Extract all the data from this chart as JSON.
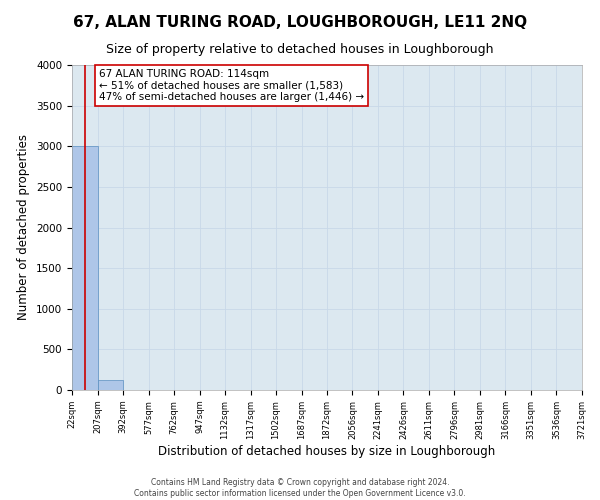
{
  "title": "67, ALAN TURING ROAD, LOUGHBOROUGH, LE11 2NQ",
  "subtitle": "Size of property relative to detached houses in Loughborough",
  "xlabel": "Distribution of detached houses by size in Loughborough",
  "ylabel": "Number of detached properties",
  "footer_line1": "Contains HM Land Registry data © Crown copyright and database right 2024.",
  "footer_line2": "Contains public sector information licensed under the Open Government Licence v3.0.",
  "bin_edges": [
    22,
    207,
    392,
    577,
    762,
    947,
    1132,
    1317,
    1502,
    1687,
    1872,
    2056,
    2241,
    2426,
    2611,
    2796,
    2981,
    3166,
    3351,
    3536,
    3721
  ],
  "bin_heights": [
    3000,
    125,
    0,
    0,
    0,
    0,
    0,
    0,
    0,
    0,
    0,
    0,
    0,
    0,
    0,
    0,
    0,
    0,
    0,
    0
  ],
  "bar_color": "#aec6e8",
  "bar_edge_color": "#5a8fc0",
  "property_size": 114,
  "red_line_color": "#cc0000",
  "annotation_line1": "67 ALAN TURING ROAD: 114sqm",
  "annotation_line2": "← 51% of detached houses are smaller (1,583)",
  "annotation_line3": "47% of semi-detached houses are larger (1,446) →",
  "annotation_box_color": "#ffffff",
  "annotation_box_edge": "#cc0000",
  "ylim": [
    0,
    4000
  ],
  "yticks": [
    0,
    500,
    1000,
    1500,
    2000,
    2500,
    3000,
    3500,
    4000
  ],
  "grid_color": "#c8d8e8",
  "background_color": "#dce8f0",
  "title_fontsize": 11,
  "subtitle_fontsize": 9,
  "xlabel_fontsize": 8.5,
  "ylabel_fontsize": 8.5,
  "annotation_fontsize": 7.5
}
